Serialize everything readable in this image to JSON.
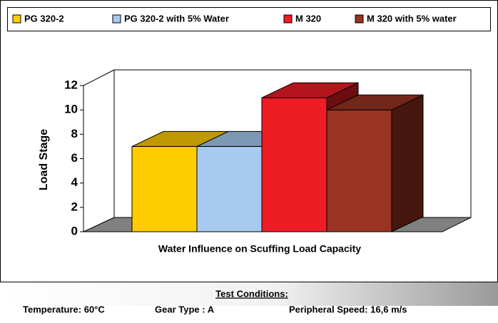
{
  "chart_data": {
    "type": "bar3d",
    "x_label": "Water Influence on Scuffing Load Capacity",
    "y_label": "Load Stage",
    "ylim": [
      0,
      12
    ],
    "yticks": [
      0,
      2,
      4,
      6,
      8,
      10,
      12
    ],
    "legend": "top",
    "series": [
      {
        "name": "PG 320-2",
        "color": "#FFCC00",
        "values": [
          7
        ]
      },
      {
        "name": "PG 320-2 with 5% Water",
        "color": "#A6CAF0",
        "values": [
          7
        ]
      },
      {
        "name": "M 320",
        "color": "#EE1C25",
        "values": [
          11
        ]
      },
      {
        "name": "M 320 with 5% water",
        "color": "#993322",
        "values": [
          10
        ]
      }
    ]
  },
  "footer": {
    "heading": "Test Conditions:",
    "items": [
      "Temperature: 60°C",
      "Gear Type : A",
      "Peripheral Speed: 16,6 m/s"
    ]
  }
}
